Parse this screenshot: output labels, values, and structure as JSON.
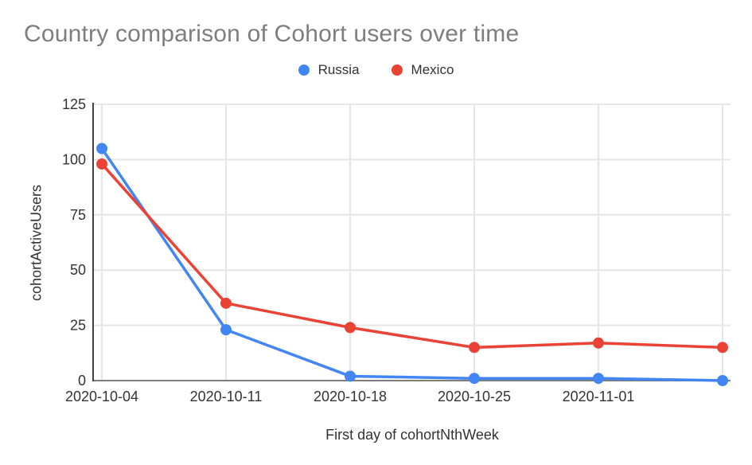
{
  "page": {
    "background": "#ffffff"
  },
  "chart_data": {
    "type": "line",
    "title": "Country comparison of Cohort users over time",
    "xlabel": "First day of cohortNthWeek",
    "ylabel": "cohortActiveUsers",
    "categories": [
      "2020-10-04",
      "2020-10-11",
      "2020-10-18",
      "2020-10-25",
      "2020-11-01",
      ""
    ],
    "series": [
      {
        "name": "Russia",
        "color": "#4285F4",
        "values": [
          105,
          23,
          2,
          1,
          1,
          0
        ]
      },
      {
        "name": "Mexico",
        "color": "#EA4335",
        "values": [
          98,
          35,
          24,
          15,
          17,
          15
        ]
      }
    ],
    "ylim": [
      0,
      125
    ],
    "yticks": [
      0,
      25,
      50,
      75,
      100,
      125
    ],
    "grid": true,
    "legend_position": "top-center",
    "point_radius": 7,
    "line_width": 3.5,
    "colors": {
      "title_text": "#7e7e7e",
      "tick_label": "#333333",
      "gridline": "#e6e6e6",
      "y_axis_line": "#424242",
      "x_baseline": "#7d7d7d"
    }
  }
}
